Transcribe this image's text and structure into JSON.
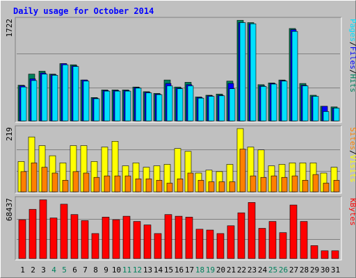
{
  "chart_data": {
    "type": "bar",
    "title": "Daily usage for October 2014",
    "days": [
      "1",
      "2",
      "3",
      "4",
      "5",
      "6",
      "7",
      "8",
      "9",
      "10",
      "11",
      "12",
      "13",
      "14",
      "15",
      "16",
      "17",
      "18",
      "19",
      "20",
      "21",
      "22",
      "23",
      "24",
      "25",
      "26",
      "27",
      "28",
      "29",
      "30",
      "31"
    ],
    "weekend_days": [
      "4",
      "5",
      "11",
      "12",
      "18",
      "19",
      "25",
      "26"
    ],
    "colors": {
      "hits": "#00805c",
      "files": "#0000ff",
      "pages": "#00e0ff",
      "visits": "#ffff00",
      "sites": "#ff8000",
      "kbytes": "#ff0000",
      "title": "#0000ff",
      "weekend_label": "#00805c",
      "weekday_label": "#000000"
    },
    "panels": [
      {
        "id": "hits",
        "max_label": "1722",
        "ylim": [
          0,
          1722
        ],
        "legend": [
          {
            "text": "Pages",
            "color": "#00e0ff"
          },
          {
            "text": "/",
            "color": "#000000"
          },
          {
            "text": "Files",
            "color": "#0000ff"
          },
          {
            "text": "/",
            "color": "#000000"
          },
          {
            "text": "Hits",
            "color": "#00805c"
          }
        ],
        "series": [
          {
            "name": "Hits",
            "color": "#00805c",
            "values": [
              610,
              800,
              850,
              800,
              980,
              960,
              700,
              400,
              530,
              530,
              530,
              580,
              500,
              470,
              700,
              580,
              660,
              410,
              440,
              460,
              680,
              1720,
              1680,
              620,
              650,
              700,
              1580,
              640,
              440,
              250,
              240
            ]
          },
          {
            "name": "Files",
            "color": "#0000ff",
            "values": [
              600,
              720,
              820,
              790,
              980,
              940,
              700,
              390,
              520,
              520,
              520,
              570,
              490,
              460,
              640,
              560,
              620,
              400,
              430,
              440,
              640,
              1680,
              1660,
              600,
              640,
              690,
              1560,
              610,
              420,
              250,
              220
            ]
          },
          {
            "name": "Pages",
            "color": "#00e0ff",
            "values": [
              580,
              690,
              800,
              780,
              960,
              930,
              680,
              380,
              510,
              510,
              510,
              560,
              480,
              450,
              600,
              550,
              600,
              390,
              420,
              430,
              550,
              1680,
              1660,
              590,
              630,
              680,
              1530,
              600,
              420,
              160,
              220
            ]
          }
        ]
      },
      {
        "id": "visits",
        "max_label": "219",
        "ylim": [
          0,
          219
        ],
        "legend": [
          {
            "text": "Sites",
            "color": "#ff8000"
          },
          {
            "text": "/",
            "color": "#000000"
          },
          {
            "text": "Visits",
            "color": "#ffff00"
          }
        ],
        "series": [
          {
            "name": "Visits",
            "color": "#ffff00",
            "values": [
              105,
              190,
              160,
              125,
              100,
              160,
              160,
              105,
              155,
              175,
              90,
              100,
              85,
              90,
              95,
              150,
              140,
              65,
              75,
              70,
              95,
              219,
              155,
              145,
              90,
              95,
              100,
              100,
              100,
              65,
              85
            ]
          },
          {
            "name": "Sites",
            "color": "#ff8000",
            "values": [
              70,
              100,
              85,
              65,
              40,
              70,
              65,
              50,
              55,
              55,
              55,
              45,
              45,
              40,
              30,
              45,
              65,
              40,
              35,
              35,
              35,
              148,
              55,
              50,
              55,
              50,
              55,
              40,
              60,
              30,
              40
            ]
          }
        ]
      },
      {
        "id": "kbytes",
        "max_label": "68437",
        "ylim": [
          0,
          68437
        ],
        "legend": [
          {
            "text": "KBytes",
            "color": "#ff0000"
          }
        ],
        "series": [
          {
            "name": "KBytes",
            "color": "#ff0000",
            "values": [
              45000,
              57000,
              68000,
              47000,
              63000,
              51000,
              44000,
              29000,
              48000,
              45000,
              49000,
              43000,
              39000,
              29000,
              51000,
              49000,
              48000,
              34000,
              33000,
              29000,
              38000,
              53000,
              65000,
              35000,
              43000,
              30000,
              62000,
              43000,
              15000,
              9000,
              9000
            ]
          }
        ]
      }
    ]
  }
}
